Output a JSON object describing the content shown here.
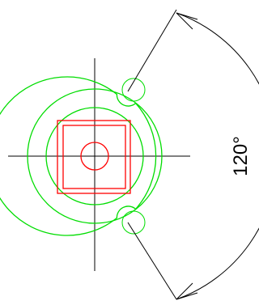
{
  "drawing": {
    "dimension": {
      "angle_label": "120°"
    },
    "colors": {
      "outline": "#00dd00",
      "square_and_hole": "#ff0000",
      "dimension_lines": "#000000",
      "centerlines": "#000000",
      "background": "#ffffff"
    }
  }
}
